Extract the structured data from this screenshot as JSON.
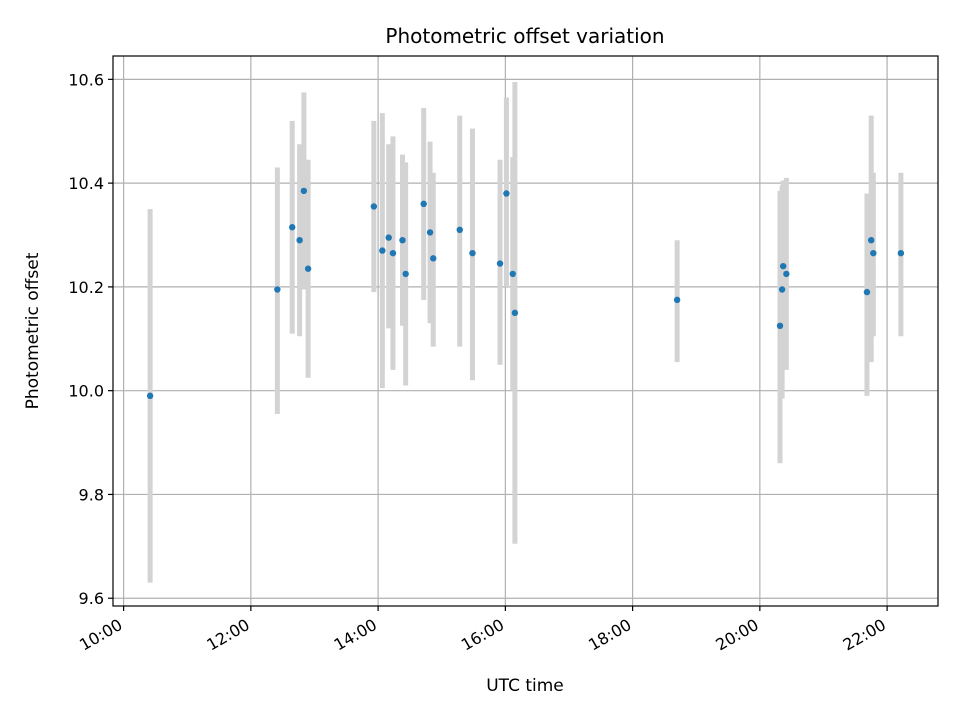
{
  "chart_data": {
    "type": "scatter",
    "title": "Photometric offset variation",
    "xlabel": "UTC time",
    "ylabel": "Photometric offset",
    "x_ticks": [
      "10:00",
      "12:00",
      "14:00",
      "16:00",
      "18:00",
      "20:00",
      "22:00"
    ],
    "y_ticks": [
      "9.6",
      "9.8",
      "10.0",
      "10.2",
      "10.4",
      "10.6"
    ],
    "xlim": [
      "09:50",
      "22:48"
    ],
    "ylim": [
      9.585,
      10.645
    ],
    "grid": true,
    "legend": "none",
    "colors": {
      "points": "#1f77b4",
      "errorbars": "#d3d3d3",
      "grid": "#b0b0b0"
    },
    "points": [
      {
        "x": "10:25",
        "y": 9.99,
        "ylo": 9.63,
        "yhi": 10.35
      },
      {
        "x": "12:25",
        "y": 10.195,
        "ylo": 9.955,
        "yhi": 10.43
      },
      {
        "x": "12:39",
        "y": 10.315,
        "ylo": 10.11,
        "yhi": 10.52
      },
      {
        "x": "12:46",
        "y": 10.29,
        "ylo": 10.105,
        "yhi": 10.475
      },
      {
        "x": "12:50",
        "y": 10.385,
        "ylo": 10.195,
        "yhi": 10.575
      },
      {
        "x": "12:54",
        "y": 10.235,
        "ylo": 10.025,
        "yhi": 10.445
      },
      {
        "x": "13:56",
        "y": 10.355,
        "ylo": 10.19,
        "yhi": 10.52
      },
      {
        "x": "14:04",
        "y": 10.27,
        "ylo": 10.005,
        "yhi": 10.535
      },
      {
        "x": "14:10",
        "y": 10.295,
        "ylo": 10.12,
        "yhi": 10.475
      },
      {
        "x": "14:14",
        "y": 10.265,
        "ylo": 10.04,
        "yhi": 10.49
      },
      {
        "x": "14:23",
        "y": 10.29,
        "ylo": 10.125,
        "yhi": 10.455
      },
      {
        "x": "14:26",
        "y": 10.225,
        "ylo": 10.01,
        "yhi": 10.44
      },
      {
        "x": "14:43",
        "y": 10.36,
        "ylo": 10.175,
        "yhi": 10.545
      },
      {
        "x": "14:49",
        "y": 10.305,
        "ylo": 10.13,
        "yhi": 10.48
      },
      {
        "x": "14:52",
        "y": 10.255,
        "ylo": 10.085,
        "yhi": 10.42
      },
      {
        "x": "15:17",
        "y": 10.31,
        "ylo": 10.085,
        "yhi": 10.53
      },
      {
        "x": "15:29",
        "y": 10.265,
        "ylo": 10.02,
        "yhi": 10.505
      },
      {
        "x": "15:55",
        "y": 10.245,
        "ylo": 10.05,
        "yhi": 10.445
      },
      {
        "x": "16:01",
        "y": 10.38,
        "ylo": 10.2,
        "yhi": 10.565
      },
      {
        "x": "16:07",
        "y": 10.225,
        "ylo": 10.0,
        "yhi": 10.45
      },
      {
        "x": "16:09",
        "y": 10.15,
        "ylo": 9.705,
        "yhi": 10.595
      },
      {
        "x": "18:42",
        "y": 10.175,
        "ylo": 10.055,
        "yhi": 10.29
      },
      {
        "x": "20:19",
        "y": 10.125,
        "ylo": 9.86,
        "yhi": 10.385
      },
      {
        "x": "20:21",
        "y": 10.195,
        "ylo": 9.985,
        "yhi": 10.395
      },
      {
        "x": "20:22",
        "y": 10.24,
        "ylo": 10.065,
        "yhi": 10.405
      },
      {
        "x": "20:25",
        "y": 10.225,
        "ylo": 10.04,
        "yhi": 10.41
      },
      {
        "x": "21:41",
        "y": 10.19,
        "ylo": 9.99,
        "yhi": 10.38
      },
      {
        "x": "21:45",
        "y": 10.29,
        "ylo": 10.055,
        "yhi": 10.53
      },
      {
        "x": "21:47",
        "y": 10.265,
        "ylo": 10.105,
        "yhi": 10.42
      },
      {
        "x": "22:13",
        "y": 10.265,
        "ylo": 10.105,
        "yhi": 10.42
      }
    ]
  }
}
